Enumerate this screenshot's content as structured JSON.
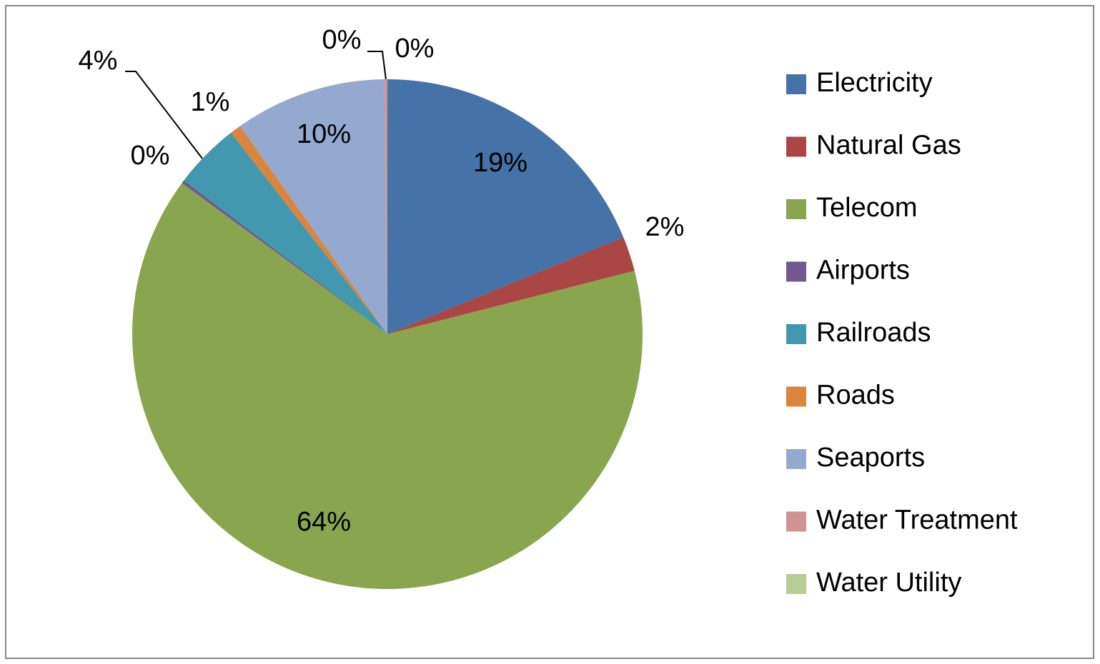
{
  "chart_data": {
    "type": "pie",
    "categories": [
      "Electricity",
      "Natural Gas",
      "Telecom",
      "Airports",
      "Railroads",
      "Roads",
      "Seaports",
      "Water Treatment",
      "Water Utility"
    ],
    "values": [
      18.8,
      2.2,
      64.1,
      0.2,
      4.2,
      0.7,
      9.6,
      0.2,
      0.0
    ],
    "value_labels": [
      "19%",
      "2%",
      "64%",
      "0%",
      "4%",
      "1%",
      "10%",
      "0%",
      "0%"
    ],
    "colors": [
      "#4572a7",
      "#aa4643",
      "#89a54e",
      "#71588f",
      "#4198af",
      "#db843d",
      "#93a9cf",
      "#d19392",
      "#b9cd96"
    ],
    "legend": "right"
  }
}
